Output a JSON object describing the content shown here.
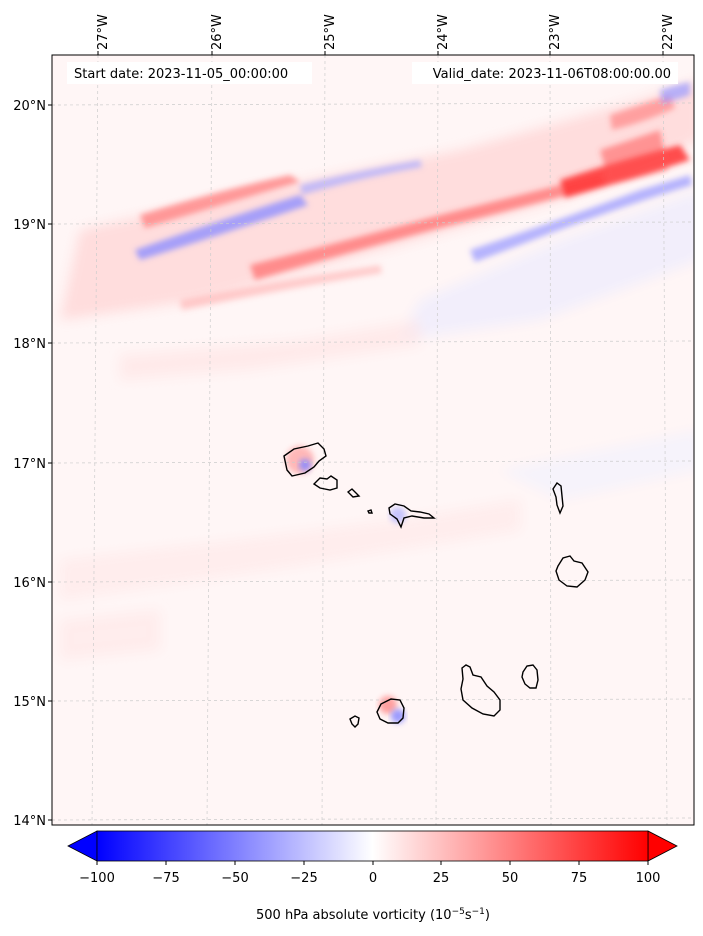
{
  "map": {
    "start_date_text": "Start date: 2023-11-05_00:00:00",
    "valid_date_text": "Valid_date: 2023-11-06T08:00:00.00",
    "lon_ticks": [
      "27°W",
      "26°W",
      "25°W",
      "24°W",
      "23°W",
      "22°W"
    ],
    "lat_ticks": [
      "20°N",
      "19°N",
      "18°N",
      "17°N",
      "16°N",
      "15°N",
      "14°N"
    ],
    "field": "500 hPa absolute vorticity",
    "islands": [
      "Santo Antão",
      "São Vicente",
      "Santa Luzia",
      "Branco",
      "Raso",
      "São Nicolau",
      "Sal",
      "Boa Vista",
      "Maio",
      "Santiago",
      "Fogo",
      "Brava"
    ]
  },
  "colorbar": {
    "ticks": [
      "−100",
      "−75",
      "−50",
      "−25",
      "0",
      "25",
      "50",
      "75",
      "100"
    ],
    "min": -100,
    "max": 100,
    "label_text": "500 hPa absolute vorticity (10",
    "label_exp1": "−5",
    "label_mid": "s",
    "label_exp2": "−1",
    "label_end": ")",
    "colors": {
      "low": "#0000ff",
      "mid": "#ffffff",
      "high": "#ff0000"
    }
  }
}
